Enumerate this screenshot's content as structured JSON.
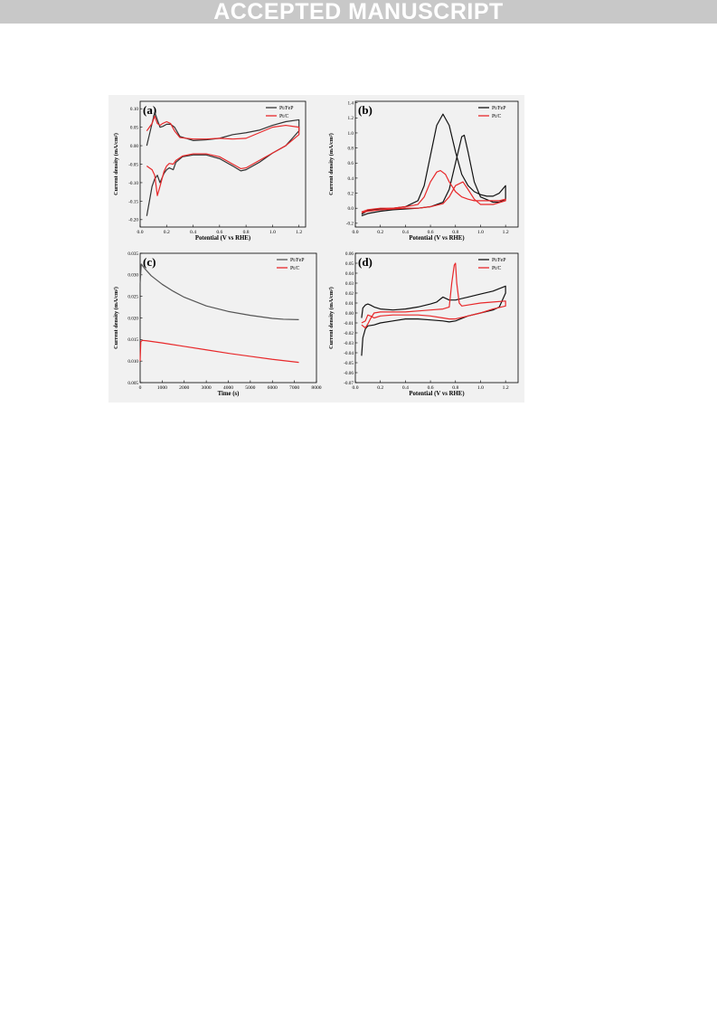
{
  "banner": {
    "text": "ACCEPTED MANUSCRIPT"
  },
  "colors": {
    "pt_fep": "#333333",
    "pt_c": "#e8282a",
    "panel_bg": "#f1f1f1"
  },
  "chart_data": [
    {
      "id": "a",
      "panel_label": "(a)",
      "type": "line",
      "xlabel": "Potential (V vs RHE)",
      "ylabel": "Current density (mA/cm²)",
      "xlim": [
        0.0,
        1.25
      ],
      "ylim": [
        -0.22,
        0.12
      ],
      "xticks": [
        0.0,
        0.2,
        0.4,
        0.6,
        0.8,
        1.0,
        1.2
      ],
      "xtick_labels": [
        "0.0",
        "0.2",
        "0.4",
        "0.6",
        "0.8",
        "1.0",
        "1.2"
      ],
      "yticks": [
        0.1,
        0.05,
        0.0,
        -0.05,
        -0.1,
        -0.15,
        -0.2
      ],
      "ytick_labels": [
        "0.10",
        "0.05",
        "0.00",
        "-0.05",
        "-0.10",
        "-0.15",
        "-0.20"
      ],
      "legend": "top-right",
      "series": [
        {
          "name": "Pt/FeP",
          "color": "#333333",
          "x": [
            0.05,
            0.07,
            0.09,
            0.11,
            0.13,
            0.15,
            0.17,
            0.2,
            0.23,
            0.26,
            0.3,
            0.4,
            0.5,
            0.6,
            0.7,
            0.8,
            0.9,
            1.0,
            1.1,
            1.2,
            1.2,
            1.15,
            1.1,
            1.0,
            0.9,
            0.8,
            0.76,
            0.7,
            0.6,
            0.5,
            0.4,
            0.32,
            0.27,
            0.25,
            0.22,
            0.2,
            0.18,
            0.15,
            0.13,
            0.11,
            0.09,
            0.07,
            0.05
          ],
          "y": [
            0.0,
            0.03,
            0.06,
            0.09,
            0.07,
            0.05,
            0.052,
            0.058,
            0.058,
            0.05,
            0.025,
            0.014,
            0.016,
            0.02,
            0.03,
            0.035,
            0.042,
            0.055,
            0.065,
            0.07,
            0.04,
            0.02,
            0.0,
            -0.02,
            -0.045,
            -0.065,
            -0.068,
            -0.055,
            -0.035,
            -0.025,
            -0.025,
            -0.03,
            -0.045,
            -0.065,
            -0.06,
            -0.065,
            -0.075,
            -0.1,
            -0.08,
            -0.09,
            -0.11,
            -0.15,
            -0.19
          ]
        },
        {
          "name": "Pt/C",
          "color": "#e8282a",
          "x": [
            0.05,
            0.07,
            0.09,
            0.11,
            0.13,
            0.15,
            0.17,
            0.2,
            0.23,
            0.26,
            0.3,
            0.4,
            0.5,
            0.6,
            0.7,
            0.8,
            0.9,
            1.0,
            1.1,
            1.2,
            1.2,
            1.15,
            1.1,
            1.0,
            0.9,
            0.8,
            0.76,
            0.7,
            0.6,
            0.5,
            0.4,
            0.32,
            0.27,
            0.25,
            0.22,
            0.2,
            0.18,
            0.15,
            0.13,
            0.11,
            0.09,
            0.07,
            0.05
          ],
          "y": [
            0.04,
            0.05,
            0.06,
            0.08,
            0.06,
            0.055,
            0.06,
            0.065,
            0.06,
            0.04,
            0.022,
            0.018,
            0.018,
            0.02,
            0.018,
            0.02,
            0.035,
            0.05,
            0.055,
            0.05,
            0.03,
            0.015,
            0.0,
            -0.02,
            -0.04,
            -0.06,
            -0.062,
            -0.05,
            -0.03,
            -0.022,
            -0.022,
            -0.028,
            -0.04,
            -0.05,
            -0.048,
            -0.055,
            -0.07,
            -0.11,
            -0.135,
            -0.08,
            -0.065,
            -0.06,
            -0.055
          ]
        }
      ]
    },
    {
      "id": "b",
      "panel_label": "(b)",
      "type": "line",
      "xlabel": "Potential (V vs RHE)",
      "ylabel": "Current density (mA/cm²)",
      "xlim": [
        0.0,
        1.3
      ],
      "ylim": [
        -0.25,
        1.42
      ],
      "xticks": [
        0.0,
        0.2,
        0.4,
        0.6,
        0.8,
        1.0,
        1.2
      ],
      "xtick_labels": [
        "0.0",
        "0.2",
        "0.4",
        "0.6",
        "0.8",
        "1.0",
        "1.2"
      ],
      "yticks": [
        1.4,
        1.2,
        1.0,
        0.8,
        0.6,
        0.4,
        0.2,
        0.0,
        -0.2
      ],
      "ytick_labels": [
        "1.4",
        "1.2",
        "1.0",
        "0.8",
        "0.6",
        "0.4",
        "0.2",
        "0.0",
        "-0.2"
      ],
      "legend": "top-right",
      "series": [
        {
          "name": "Pt/FeP",
          "color": "#111111",
          "x": [
            0.05,
            0.1,
            0.2,
            0.3,
            0.4,
            0.5,
            0.55,
            0.6,
            0.65,
            0.7,
            0.75,
            0.8,
            0.85,
            0.9,
            0.95,
            1.0,
            1.05,
            1.1,
            1.15,
            1.2,
            1.2,
            1.15,
            1.1,
            1.0,
            0.95,
            0.9,
            0.87,
            0.85,
            0.8,
            0.75,
            0.7,
            0.6,
            0.5,
            0.4,
            0.3,
            0.2,
            0.1,
            0.05
          ],
          "y": [
            -0.08,
            -0.03,
            -0.01,
            0.0,
            0.02,
            0.1,
            0.3,
            0.7,
            1.1,
            1.25,
            1.1,
            0.75,
            0.45,
            0.3,
            0.22,
            0.18,
            0.16,
            0.16,
            0.2,
            0.3,
            0.12,
            0.08,
            0.08,
            0.15,
            0.35,
            0.75,
            0.97,
            0.95,
            0.6,
            0.25,
            0.08,
            0.02,
            0.0,
            -0.01,
            -0.02,
            -0.04,
            -0.07,
            -0.1
          ]
        },
        {
          "name": "Pt/C",
          "color": "#e8282a",
          "x": [
            0.05,
            0.1,
            0.2,
            0.3,
            0.4,
            0.5,
            0.55,
            0.6,
            0.65,
            0.68,
            0.72,
            0.75,
            0.8,
            0.85,
            0.9,
            0.95,
            1.0,
            1.05,
            1.1,
            1.15,
            1.2,
            1.2,
            1.1,
            1.0,
            0.95,
            0.9,
            0.86,
            0.8,
            0.75,
            0.7,
            0.6,
            0.5,
            0.4,
            0.3,
            0.2,
            0.1,
            0.05
          ],
          "y": [
            -0.05,
            -0.02,
            0.0,
            0.0,
            0.02,
            0.05,
            0.15,
            0.35,
            0.48,
            0.5,
            0.45,
            0.35,
            0.22,
            0.15,
            0.12,
            0.1,
            0.1,
            0.1,
            0.1,
            0.1,
            0.12,
            0.1,
            0.05,
            0.05,
            0.12,
            0.25,
            0.35,
            0.3,
            0.15,
            0.06,
            0.02,
            0.0,
            0.0,
            -0.01,
            -0.02,
            -0.04,
            -0.06
          ]
        }
      ]
    },
    {
      "id": "c",
      "panel_label": "(c)",
      "type": "line",
      "xlabel": "Time (s)",
      "ylabel": "Current density (mA/cm²)",
      "xlim": [
        0,
        8000
      ],
      "ylim": [
        0.005,
        0.035
      ],
      "xticks": [
        0,
        1000,
        2000,
        3000,
        4000,
        5000,
        6000,
        7000,
        8000
      ],
      "xtick_labels": [
        "0",
        "1000",
        "2000",
        "3000",
        "4000",
        "5000",
        "6000",
        "7000",
        "8000"
      ],
      "yticks": [
        0.035,
        0.03,
        0.025,
        0.02,
        0.015,
        0.01,
        0.005
      ],
      "ytick_labels": [
        "0.035",
        "0.030",
        "0.025",
        "0.020",
        "0.015",
        "0.010",
        "0.005"
      ],
      "legend": "top-right",
      "series": [
        {
          "name": "Pt/FeP",
          "color": "#555555",
          "x": [
            0,
            50,
            200,
            500,
            1000,
            1500,
            2000,
            3000,
            4000,
            5000,
            6000,
            6500,
            7200
          ],
          "y": [
            0.028,
            0.0325,
            0.0315,
            0.0298,
            0.0278,
            0.0262,
            0.0248,
            0.0228,
            0.0215,
            0.0206,
            0.0199,
            0.0197,
            0.0196
          ]
        },
        {
          "name": "Pt/C",
          "color": "#e8282a",
          "x": [
            0,
            30,
            100,
            300,
            1000,
            2000,
            3000,
            4000,
            5000,
            6000,
            7200
          ],
          "y": [
            0.01,
            0.0145,
            0.0148,
            0.0147,
            0.0142,
            0.0134,
            0.0126,
            0.0118,
            0.0111,
            0.0104,
            0.0097
          ]
        }
      ]
    },
    {
      "id": "d",
      "panel_label": "(d)",
      "type": "line",
      "xlabel": "Potential (V vs RHE)",
      "ylabel": "Current density (mA/cm²)",
      "xlim": [
        0.0,
        1.3
      ],
      "ylim": [
        -0.07,
        0.06
      ],
      "xticks": [
        0.0,
        0.2,
        0.4,
        0.6,
        0.8,
        1.0,
        1.2
      ],
      "xtick_labels": [
        "0.0",
        "0.2",
        "0.4",
        "0.6",
        "0.8",
        "1.0",
        "1.2"
      ],
      "yticks": [
        0.06,
        0.05,
        0.04,
        0.03,
        0.02,
        0.01,
        0.0,
        -0.01,
        -0.02,
        -0.03,
        -0.04,
        -0.05,
        -0.06,
        -0.07
      ],
      "ytick_labels": [
        "0.06",
        "0.05",
        "0.04",
        "0.03",
        "0.02",
        "0.01",
        "0.00",
        "-0.01",
        "-0.02",
        "-0.03",
        "-0.04",
        "-0.05",
        "-0.06",
        "-0.07"
      ],
      "legend": "top-right",
      "series": [
        {
          "name": "Pt/FeP",
          "color": "#111111",
          "x": [
            0.05,
            0.06,
            0.08,
            0.1,
            0.12,
            0.15,
            0.2,
            0.3,
            0.4,
            0.5,
            0.6,
            0.65,
            0.7,
            0.75,
            0.8,
            0.9,
            1.0,
            1.1,
            1.2,
            1.2,
            1.15,
            1.1,
            1.0,
            0.9,
            0.8,
            0.75,
            0.7,
            0.6,
            0.5,
            0.4,
            0.3,
            0.2,
            0.15,
            0.1,
            0.08,
            0.06,
            0.05
          ],
          "y": [
            -0.005,
            0.005,
            0.008,
            0.009,
            0.008,
            0.006,
            0.004,
            0.003,
            0.004,
            0.006,
            0.009,
            0.011,
            0.016,
            0.013,
            0.013,
            0.016,
            0.019,
            0.022,
            0.027,
            0.02,
            0.006,
            0.003,
            0.0,
            -0.003,
            -0.008,
            -0.009,
            -0.008,
            -0.007,
            -0.006,
            -0.006,
            -0.008,
            -0.01,
            -0.012,
            -0.013,
            -0.016,
            -0.025,
            -0.043
          ]
        },
        {
          "name": "Pt/C",
          "color": "#e8282a",
          "x": [
            0.05,
            0.08,
            0.1,
            0.12,
            0.15,
            0.2,
            0.3,
            0.4,
            0.5,
            0.6,
            0.7,
            0.75,
            0.77,
            0.79,
            0.8,
            0.81,
            0.83,
            0.85,
            0.9,
            1.0,
            1.1,
            1.2,
            1.2,
            1.1,
            1.0,
            0.9,
            0.8,
            0.75,
            0.7,
            0.6,
            0.5,
            0.4,
            0.3,
            0.2,
            0.15,
            0.12,
            0.1,
            0.08,
            0.05
          ],
          "y": [
            -0.012,
            -0.015,
            -0.011,
            -0.006,
            0.0,
            0.001,
            0.001,
            0.001,
            0.002,
            0.003,
            0.004,
            0.006,
            0.03,
            0.048,
            0.05,
            0.03,
            0.01,
            0.007,
            0.008,
            0.01,
            0.011,
            0.012,
            0.007,
            0.004,
            0.0,
            -0.003,
            -0.006,
            -0.006,
            -0.005,
            -0.003,
            -0.002,
            -0.002,
            -0.002,
            -0.003,
            -0.005,
            -0.003,
            -0.002,
            -0.008,
            -0.01
          ]
        }
      ]
    }
  ]
}
